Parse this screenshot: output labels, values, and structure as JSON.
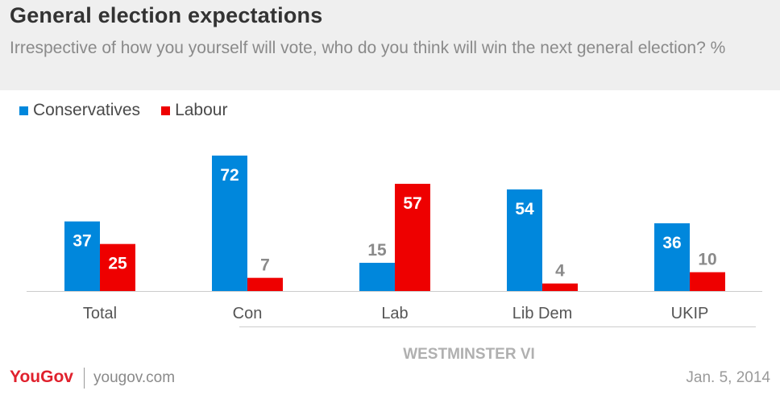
{
  "title": "General election expectations",
  "subtitle": "Irrespective of how you yourself will vote, who do you think will win the next general election? %",
  "colors": {
    "conservatives": "#0087dc",
    "labour": "#ee0000",
    "header_bg": "#efefef"
  },
  "legend": [
    {
      "label": "Conservatives",
      "color": "#0087dc"
    },
    {
      "label": "Labour",
      "color": "#ee0000"
    }
  ],
  "group_label": "WESTMINSTER VI",
  "footer": {
    "logo_you": "YouGov",
    "url": "yougov.com",
    "date": "Jan. 5, 2014"
  },
  "chart_data": {
    "type": "bar",
    "categories": [
      "Total",
      "Con",
      "Lab",
      "Lib Dem",
      "UKIP"
    ],
    "series": [
      {
        "name": "Conservatives",
        "values": [
          37,
          72,
          15,
          54,
          36
        ]
      },
      {
        "name": "Labour",
        "values": [
          25,
          7,
          57,
          4,
          10
        ]
      }
    ],
    "ylim": [
      0,
      72
    ],
    "grid": false,
    "legend_position": "top-left",
    "group_label": "WESTMINSTER VI"
  }
}
